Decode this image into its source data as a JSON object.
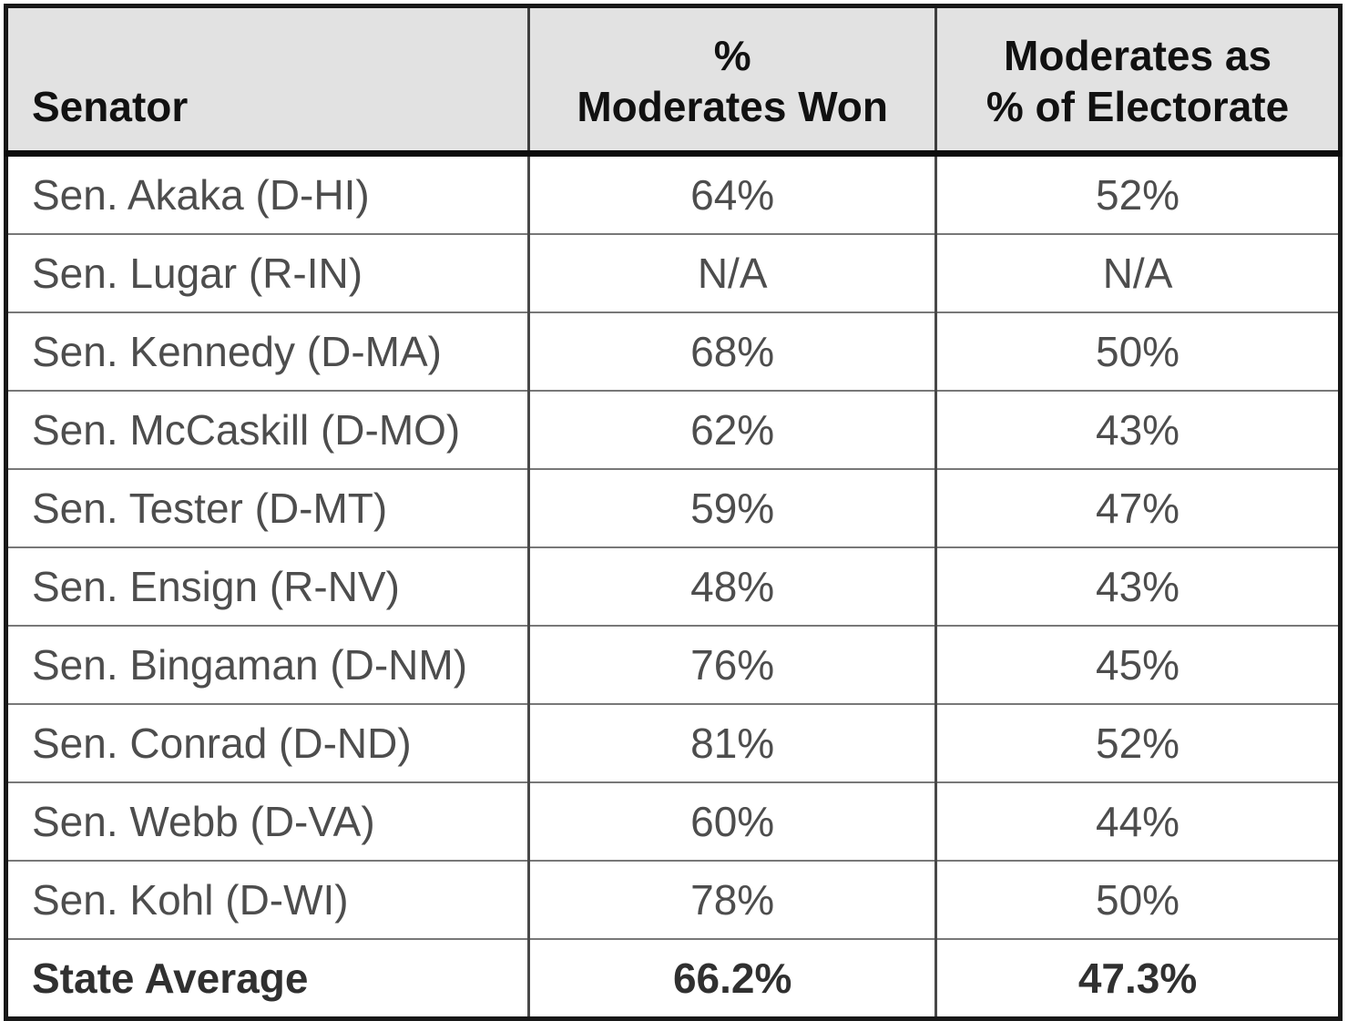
{
  "chart_data": {
    "type": "table",
    "columns": [
      "Senator",
      "%\nModerates Won",
      "Moderates as\n% of Electorate"
    ],
    "rows": [
      [
        "Sen. Akaka (D-HI)",
        "64%",
        "52%"
      ],
      [
        "Sen. Lugar (R-IN)",
        "N/A",
        "N/A"
      ],
      [
        "Sen. Kennedy (D-MA)",
        "68%",
        "50%"
      ],
      [
        "Sen. McCaskill (D-MO)",
        "62%",
        "43%"
      ],
      [
        "Sen. Tester (D-MT)",
        "59%",
        "47%"
      ],
      [
        "Sen. Ensign (R-NV)",
        "48%",
        "43%"
      ],
      [
        "Sen. Bingaman (D-NM)",
        "76%",
        "45%"
      ],
      [
        "Sen. Conrad (D-ND)",
        "81%",
        "52%"
      ],
      [
        "Sen. Webb (D-VA)",
        "60%",
        "44%"
      ],
      [
        "Sen. Kohl (D-WI)",
        "78%",
        "50%"
      ]
    ],
    "summary_row": [
      "State Average",
      "66.2%",
      "47.3%"
    ],
    "layout": {
      "header_align": [
        "left",
        "center",
        "center"
      ],
      "body_align": [
        "left",
        "center",
        "center"
      ],
      "grid": "full"
    }
  },
  "colors": {
    "header_bg": "#e2e2e2",
    "header_text": "#111111",
    "body_text": "#4d4d4d",
    "summary_text": "#303030",
    "outer_border": "#181818",
    "header_rule": "#0c0c0c",
    "row_divider": "#787878",
    "column_divider": "#484848"
  }
}
